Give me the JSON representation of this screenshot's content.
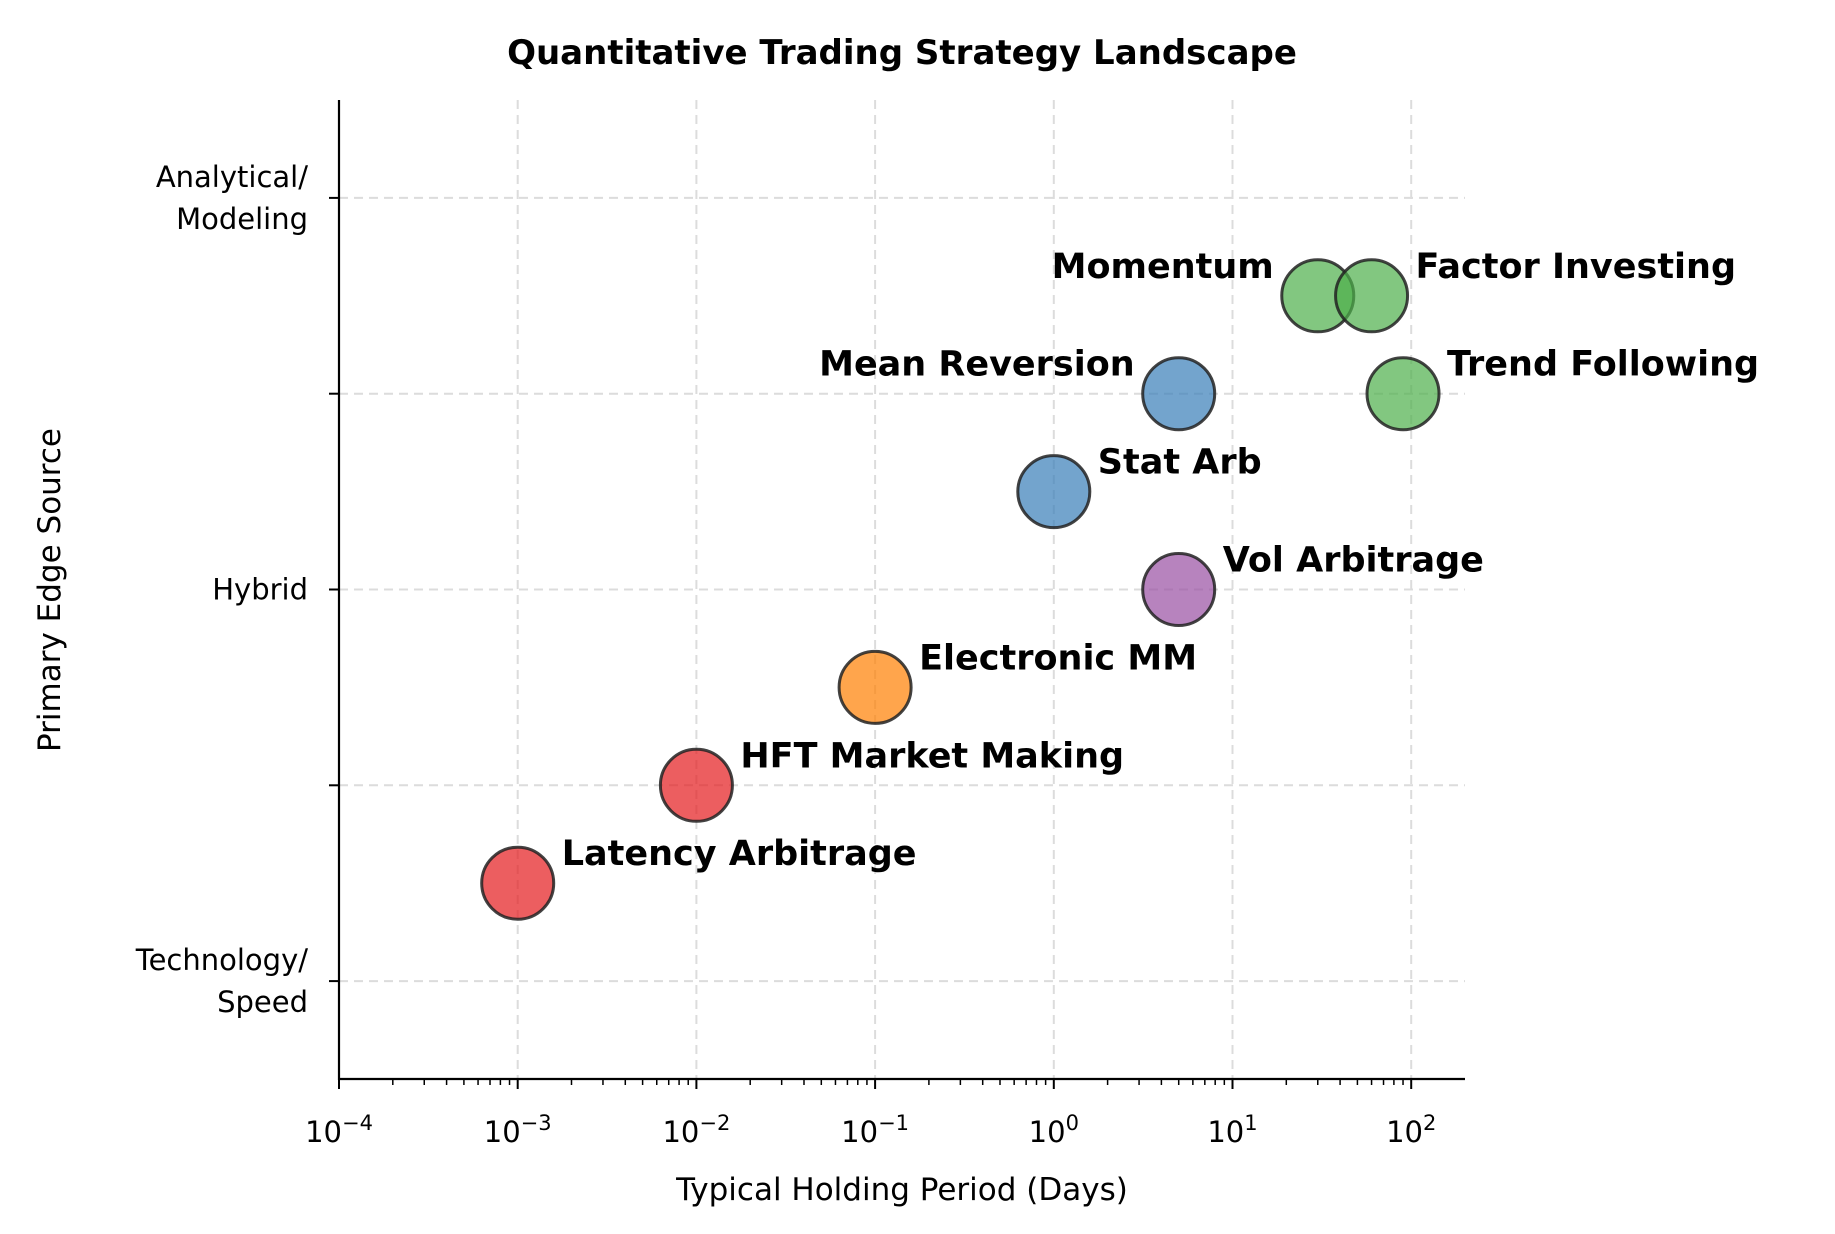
{
  "chart_data": {
    "type": "scatter",
    "title": "Quantitative Trading Strategy Landscape",
    "xlabel": "Typical Holding Period (Days)",
    "ylabel": "Primary Edge Source",
    "xscale": "log",
    "xlim": [
      0.0001,
      200
    ],
    "ylim": [
      -0.5,
      4.5
    ],
    "xticks": [
      {
        "value": 0.0001,
        "base": "10",
        "exp": "−4"
      },
      {
        "value": 0.001,
        "base": "10",
        "exp": "−3"
      },
      {
        "value": 0.01,
        "base": "10",
        "exp": "−2"
      },
      {
        "value": 0.1,
        "base": "10",
        "exp": "−1"
      },
      {
        "value": 1,
        "base": "10",
        "exp": "0"
      },
      {
        "value": 10,
        "base": "10",
        "exp": "1"
      },
      {
        "value": 100,
        "base": "10",
        "exp": "2"
      }
    ],
    "yticks": [
      {
        "value": 0,
        "lines": [
          "Technology/",
          "Speed"
        ]
      },
      {
        "value": 1,
        "lines": []
      },
      {
        "value": 2,
        "lines": [
          "Hybrid"
        ]
      },
      {
        "value": 3,
        "lines": []
      },
      {
        "value": 4,
        "lines": [
          "Analytical/",
          "Modeling"
        ]
      }
    ],
    "grid": true,
    "points": [
      {
        "label": "Latency Arbitrage",
        "x": 0.001,
        "y": 0.5,
        "color": "#e41a1c"
      },
      {
        "label": "HFT Market Making",
        "x": 0.01,
        "y": 1.0,
        "color": "#e41a1c"
      },
      {
        "label": "Electronic MM",
        "x": 0.1,
        "y": 1.5,
        "color": "#ff7f00"
      },
      {
        "label": "Stat Arb",
        "x": 1,
        "y": 2.5,
        "color": "#377eb8"
      },
      {
        "label": "Mean Reversion",
        "x": 5,
        "y": 3.0,
        "color": "#377eb8"
      },
      {
        "label": "Vol Arbitrage",
        "x": 5,
        "y": 2.0,
        "color": "#984ea3"
      },
      {
        "label": "Momentum",
        "x": 30,
        "y": 3.5,
        "color": "#4daf4a"
      },
      {
        "label": "Factor Investing",
        "x": 60,
        "y": 3.5,
        "color": "#4daf4a"
      },
      {
        "label": "Trend Following",
        "x": 90,
        "y": 3.0,
        "color": "#4daf4a"
      }
    ]
  }
}
